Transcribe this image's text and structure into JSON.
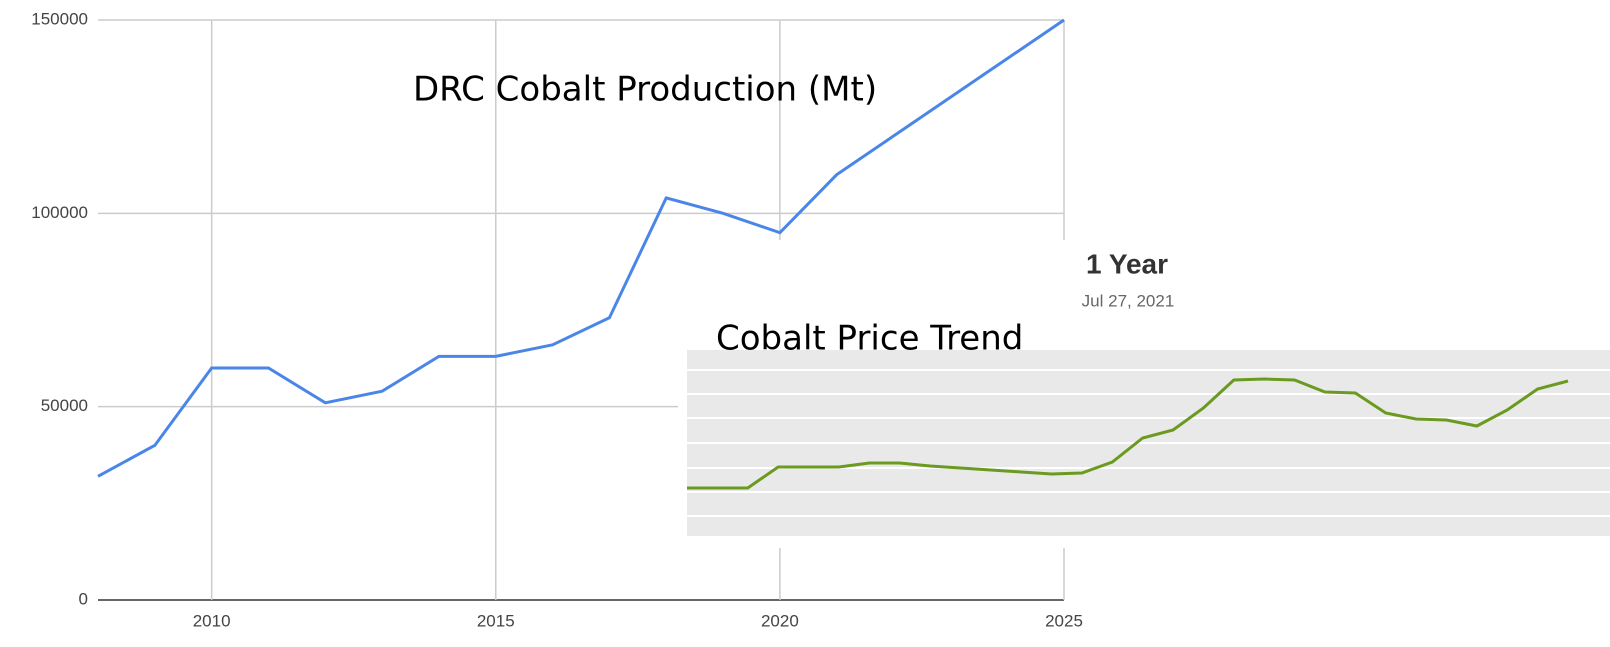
{
  "chart_data": [
    {
      "type": "line",
      "title": "DRC Cobalt Production (Mt)",
      "series": [
        {
          "name": "DRC Cobalt Production",
          "color": "#4a86e8",
          "x": [
            2008,
            2009,
            2010,
            2011,
            2012,
            2013,
            2014,
            2015,
            2016,
            2017,
            2018,
            2019,
            2020,
            2021,
            2025
          ],
          "values": [
            32000,
            40000,
            60000,
            60000,
            51000,
            54000,
            63000,
            63000,
            66000,
            73000,
            104000,
            100000,
            95000,
            110000,
            150000
          ]
        }
      ],
      "xlim": [
        2008,
        2025
      ],
      "xticks": [
        2010,
        2015,
        2020,
        2025
      ],
      "ylim": [
        0,
        150000
      ],
      "yticks": [
        0,
        50000,
        100000,
        150000
      ],
      "grid": true
    },
    {
      "type": "line",
      "title": "1 Year",
      "subtitle": "Jul 27, 2021",
      "annotation": "Cobalt Price Trend",
      "color": "#6a9a1f",
      "values": [
        48,
        48,
        48,
        69,
        69,
        69,
        73,
        73,
        70,
        68,
        66,
        64,
        62,
        63,
        74,
        98,
        106,
        128,
        156,
        157,
        156,
        144,
        143,
        123,
        117,
        116,
        110,
        126,
        147,
        155
      ],
      "ylim": [
        0,
        186
      ]
    }
  ]
}
